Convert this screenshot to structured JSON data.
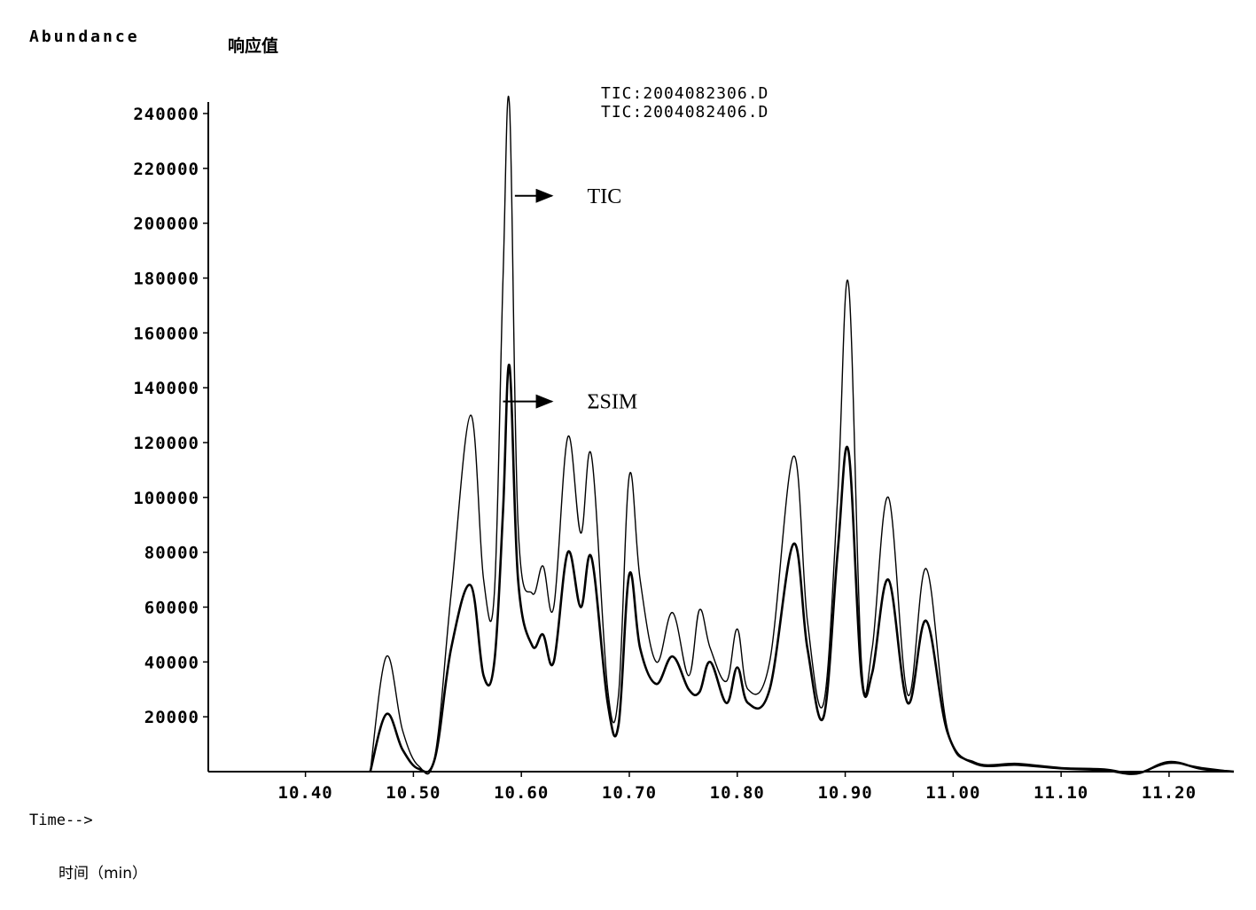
{
  "chart_data": {
    "type": "line",
    "ylabel": "Abundance",
    "ylabel_cn": "响应值",
    "xlabel": "Time-->",
    "xlabel_cn": "时间（min）",
    "legend": [
      "TIC:2004082306.D",
      "TIC:2004082406.D"
    ],
    "legend_position": "top-right",
    "annotations": [
      {
        "text": "TIC",
        "x": 10.62,
        "y": 210000
      },
      {
        "text": "ΣSIM",
        "x": 10.62,
        "y": 135000
      }
    ],
    "xlim": [
      10.31,
      11.26
    ],
    "ylim": [
      0,
      240000
    ],
    "x_ticks": [
      "10.40",
      "10.50",
      "10.60",
      "10.70",
      "10.80",
      "10.90",
      "11.00",
      "11.10",
      "11.20"
    ],
    "y_ticks": [
      "20000",
      "40000",
      "60000",
      "80000",
      "100000",
      "120000",
      "140000",
      "160000",
      "180000",
      "200000",
      "220000",
      "240000"
    ],
    "grid": false,
    "series": [
      {
        "name": "TIC:2004082306.D",
        "x": [
          10.46,
          10.475,
          10.49,
          10.505,
          10.52,
          10.535,
          10.553,
          10.565,
          10.575,
          10.583,
          10.589,
          10.597,
          10.61,
          10.62,
          10.63,
          10.643,
          10.655,
          10.665,
          10.68,
          10.69,
          10.7,
          10.71,
          10.725,
          10.74,
          10.755,
          10.765,
          10.775,
          10.79,
          10.8,
          10.81,
          10.83,
          10.852,
          10.865,
          10.88,
          10.893,
          10.903,
          10.915,
          10.925,
          10.94,
          10.958,
          10.975,
          10.995,
          11.02,
          11.06,
          11.1,
          11.14,
          11.17,
          11.2,
          11.23,
          11.26
        ],
        "y": [
          0,
          42000,
          15000,
          2000,
          6000,
          65000,
          130000,
          70000,
          65000,
          180000,
          243000,
          90000,
          65000,
          75000,
          60000,
          122000,
          87000,
          115000,
          30000,
          28000,
          108000,
          70000,
          40000,
          58000,
          35000,
          59000,
          45000,
          33000,
          52000,
          30000,
          40000,
          115000,
          55000,
          25000,
          100000,
          178000,
          40000,
          45000,
          100000,
          28000,
          74000,
          15000,
          3500,
          3000,
          1500,
          1000,
          -500,
          3000,
          1500,
          0
        ]
      },
      {
        "name": "TIC:2004082406.D",
        "x": [
          10.46,
          10.475,
          10.49,
          10.505,
          10.52,
          10.535,
          10.553,
          10.565,
          10.575,
          10.583,
          10.589,
          10.597,
          10.61,
          10.62,
          10.63,
          10.643,
          10.655,
          10.665,
          10.68,
          10.69,
          10.7,
          10.71,
          10.725,
          10.74,
          10.755,
          10.765,
          10.775,
          10.79,
          10.8,
          10.81,
          10.83,
          10.852,
          10.865,
          10.88,
          10.893,
          10.903,
          10.915,
          10.925,
          10.94,
          10.958,
          10.975,
          10.995,
          11.02,
          11.06,
          11.1,
          11.14,
          11.17,
          11.2,
          11.23,
          11.26
        ],
        "y": [
          0,
          21000,
          8000,
          1000,
          5000,
          45000,
          68000,
          35000,
          40000,
          95000,
          148000,
          70000,
          46000,
          50000,
          40000,
          80000,
          60000,
          78000,
          25000,
          17000,
          72000,
          45000,
          32000,
          42000,
          30000,
          29000,
          40000,
          25000,
          38000,
          25000,
          30000,
          83000,
          45000,
          20000,
          80000,
          117000,
          35000,
          36000,
          70000,
          25000,
          55000,
          14000,
          3000,
          2500,
          1200,
          500,
          -700,
          3500,
          1000,
          0
        ]
      }
    ]
  }
}
